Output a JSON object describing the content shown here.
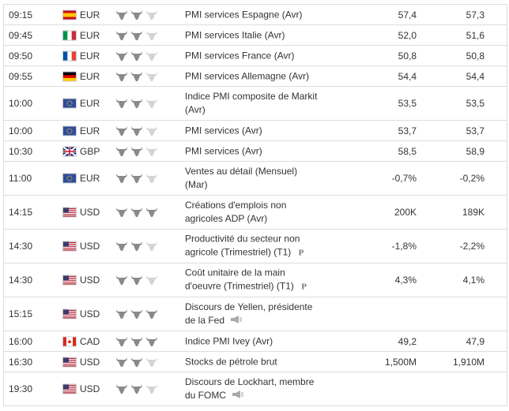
{
  "rows": [
    {
      "time": "09:15",
      "currency": "EUR",
      "importance": 2,
      "event": [
        "PMI services Espagne (Avr)"
      ],
      "actual": "57,4",
      "forecast": "57,3"
    },
    {
      "time": "09:45",
      "currency": "EUR",
      "importance": 2,
      "event": [
        "PMI services Italie (Avr)"
      ],
      "actual": "52,0",
      "forecast": "51,6"
    },
    {
      "time": "09:50",
      "currency": "EUR",
      "importance": 2,
      "event": [
        "PMI services France (Avr)"
      ],
      "actual": "50,8",
      "forecast": "50,8"
    },
    {
      "time": "09:55",
      "currency": "EUR",
      "importance": 2,
      "event": [
        "PMI services Allemagne (Avr)"
      ],
      "actual": "54,4",
      "forecast": "54,4"
    },
    {
      "time": "10:00",
      "currency": "EUR",
      "importance": 2,
      "event": [
        "Indice PMI composite de Markit",
        "(Avr)"
      ],
      "actual": "53,5",
      "forecast": "53,5"
    },
    {
      "time": "10:00",
      "currency": "EUR",
      "importance": 2,
      "event": [
        "PMI services (Avr)"
      ],
      "actual": "53,7",
      "forecast": "53,7"
    },
    {
      "time": "10:30",
      "currency": "GBP",
      "importance": 2,
      "event": [
        "PMI services (Avr)"
      ],
      "actual": "58,5",
      "forecast": "58,9"
    },
    {
      "time": "11:00",
      "currency": "EUR",
      "importance": 2,
      "event": [
        "Ventes au détail (Mensuel)",
        "(Mar)"
      ],
      "actual": "-0,7%",
      "forecast": "-0,2%"
    },
    {
      "time": "14:15",
      "currency": "USD",
      "importance": 3,
      "event": [
        "Créations d'emplois non",
        "agricoles ADP (Avr)"
      ],
      "actual": "200K",
      "forecast": "189K"
    },
    {
      "time": "14:30",
      "currency": "USD",
      "importance": 2,
      "event": [
        "Productivité du secteur non",
        "agricole (Trimestriel) (T1)"
      ],
      "actual": "-1,8%",
      "forecast": "-2,2%"
    },
    {
      "time": "14:30",
      "currency": "USD",
      "importance": 2,
      "event": [
        "Coût unitaire de la main",
        "d'oeuvre (Trimestriel) (T1)"
      ],
      "actual": "4,3%",
      "forecast": "4,1%"
    },
    {
      "time": "15:15",
      "currency": "USD",
      "importance": 3,
      "event": [
        "Discours de Yellen, présidente",
        "de la Fed"
      ]
    },
    {
      "time": "16:00",
      "currency": "CAD",
      "importance": 3,
      "event": [
        "Indice PMI Ivey (Avr)"
      ],
      "actual": "49,2",
      "forecast": "47,9"
    },
    {
      "time": "16:30",
      "currency": "USD",
      "importance": 2,
      "event": [
        "Stocks de pétrole brut"
      ],
      "actual": "1,500M",
      "forecast": "1,910M"
    },
    {
      "time": "19:30",
      "currency": "USD",
      "importance": 2,
      "event": [
        "Discours de Lockhart, membre",
        "du FOMC"
      ]
    }
  ]
}
